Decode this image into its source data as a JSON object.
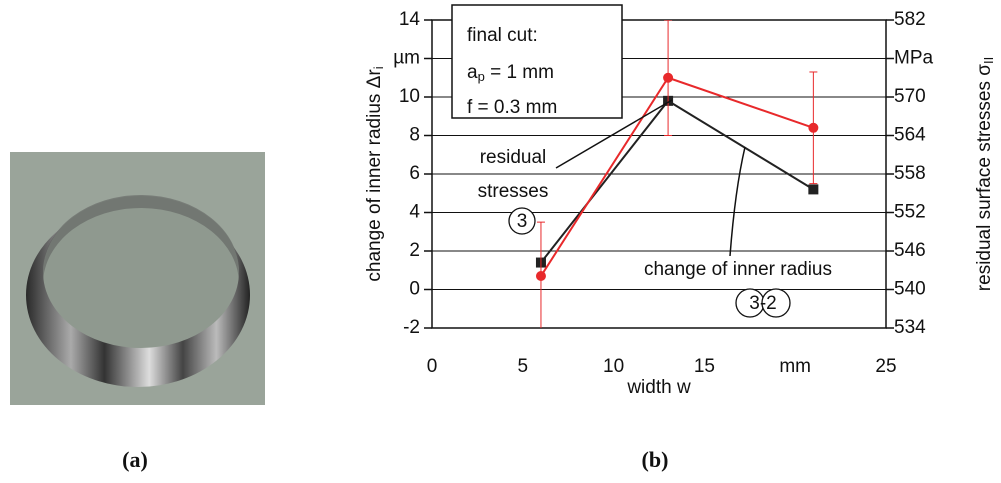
{
  "chart_data": {
    "type": "line",
    "x_label": "width w",
    "y_label": {
      "text": "change of inner radius Δr",
      "sub": "i"
    },
    "y2_label": {
      "text": "residual surface stresses σ",
      "sub": "II"
    },
    "xlim": [
      0,
      25
    ],
    "xticks": [
      0,
      5,
      10,
      15,
      {
        "value": 20,
        "label": "mm"
      },
      25
    ],
    "ylim": [
      -2,
      14
    ],
    "yticks": [
      -2,
      0,
      2,
      4,
      6,
      8,
      10,
      {
        "value": 12,
        "label": "µm"
      },
      14
    ],
    "y2lim": [
      534,
      582
    ],
    "y2ticks": [
      534,
      540,
      546,
      552,
      558,
      564,
      570,
      {
        "value": 576,
        "label": "MPa"
      },
      582
    ],
    "grid": true,
    "series": [
      {
        "label": "change of inner radius",
        "tag": "3-2",
        "color": "#222222",
        "marker": "square",
        "x": [
          6,
          13,
          21
        ],
        "values": [
          1.4,
          9.8,
          5.2
        ]
      },
      {
        "label_lines": [
          "residual",
          "stresses"
        ],
        "tag": "3",
        "color": "#e8292b",
        "marker": "circle",
        "axis": "y2",
        "x": [
          6,
          13,
          21
        ],
        "values": [
          542.1,
          573,
          565.2
        ],
        "errors": [
          8.4,
          9,
          8.7
        ]
      }
    ],
    "box_lines": [
      {
        "text": "final cut:"
      },
      {
        "text": "a",
        "sub": "p",
        "rest": " = 1 mm"
      },
      {
        "text": "f = 0.3 mm"
      }
    ]
  },
  "panel_labels": [
    "(a)",
    "(b)"
  ]
}
